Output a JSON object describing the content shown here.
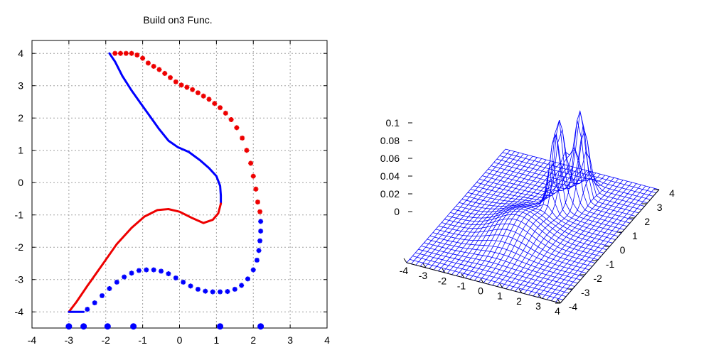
{
  "chart_data": [
    {
      "type": "line",
      "title": "Build on3 Func.",
      "xlabel": "",
      "ylabel": "",
      "xlim": [
        -4,
        4
      ],
      "ylim": [
        -4.5,
        4.4
      ],
      "x_ticks": [
        -4,
        -3,
        -2,
        -1,
        0,
        1,
        2,
        3,
        4
      ],
      "y_ticks": [
        -4,
        -3,
        -2,
        -1,
        0,
        1,
        2,
        3,
        4
      ],
      "grid": true,
      "legend": "none",
      "series": [
        {
          "color": "#0000ff",
          "style": "line",
          "points": [
            [
              -1.9,
              4.0
            ],
            [
              -1.75,
              3.75
            ],
            [
              -1.55,
              3.3
            ],
            [
              -1.3,
              2.85
            ],
            [
              -1.05,
              2.45
            ],
            [
              -0.8,
              2.05
            ],
            [
              -0.55,
              1.65
            ],
            [
              -0.3,
              1.3
            ],
            [
              -0.05,
              1.1
            ],
            [
              0.25,
              0.95
            ],
            [
              0.55,
              0.7
            ],
            [
              0.8,
              0.45
            ],
            [
              1.0,
              0.2
            ],
            [
              1.1,
              -0.1
            ],
            [
              1.12,
              -0.4
            ],
            [
              1.12,
              -0.65
            ]
          ]
        },
        {
          "color": "#ee0000",
          "style": "line",
          "points": [
            [
              1.12,
              -0.65
            ],
            [
              1.05,
              -0.95
            ],
            [
              0.9,
              -1.15
            ],
            [
              0.65,
              -1.25
            ],
            [
              0.35,
              -1.1
            ],
            [
              0.0,
              -0.9
            ],
            [
              -0.3,
              -0.82
            ],
            [
              -0.6,
              -0.85
            ],
            [
              -0.95,
              -1.05
            ],
            [
              -1.3,
              -1.4
            ],
            [
              -1.7,
              -1.9
            ],
            [
              -2.1,
              -2.55
            ],
            [
              -2.5,
              -3.2
            ],
            [
              -2.8,
              -3.7
            ],
            [
              -3.0,
              -4.0
            ]
          ]
        },
        {
          "color": "#0000ff",
          "style": "line",
          "points": [
            [
              -3.0,
              -4.0
            ],
            [
              -2.6,
              -4.0
            ]
          ]
        },
        {
          "color": "#ee0000",
          "style": "markers",
          "points": [
            [
              -1.75,
              4.0
            ],
            [
              -1.6,
              4.0
            ],
            [
              -1.45,
              4.0
            ],
            [
              -1.3,
              4.0
            ],
            [
              -1.15,
              3.95
            ],
            [
              -1.0,
              3.85
            ],
            [
              -0.85,
              3.7
            ],
            [
              -0.7,
              3.6
            ],
            [
              -0.55,
              3.5
            ],
            [
              -0.4,
              3.38
            ],
            [
              -0.25,
              3.25
            ],
            [
              -0.1,
              3.12
            ],
            [
              0.05,
              3.02
            ],
            [
              0.2,
              2.95
            ],
            [
              0.35,
              2.88
            ],
            [
              0.5,
              2.78
            ],
            [
              0.65,
              2.68
            ],
            [
              0.8,
              2.58
            ],
            [
              0.95,
              2.45
            ],
            [
              1.1,
              2.32
            ],
            [
              1.25,
              2.15
            ],
            [
              1.4,
              1.95
            ],
            [
              1.55,
              1.7
            ],
            [
              1.7,
              1.38
            ],
            [
              1.82,
              1.0
            ],
            [
              1.93,
              0.6
            ],
            [
              2.0,
              0.2
            ],
            [
              2.07,
              -0.2
            ],
            [
              2.12,
              -0.6
            ],
            [
              2.18,
              -0.9
            ]
          ]
        },
        {
          "color": "#0000ff",
          "style": "markers",
          "points": [
            [
              2.2,
              -1.2
            ],
            [
              2.2,
              -1.5
            ],
            [
              2.18,
              -1.8
            ],
            [
              2.15,
              -2.1
            ],
            [
              2.1,
              -2.4
            ],
            [
              2.0,
              -2.7
            ],
            [
              1.85,
              -2.98
            ],
            [
              1.68,
              -3.18
            ],
            [
              1.5,
              -3.3
            ],
            [
              1.3,
              -3.37
            ],
            [
              1.1,
              -3.38
            ],
            [
              0.9,
              -3.38
            ],
            [
              0.7,
              -3.36
            ],
            [
              0.5,
              -3.3
            ],
            [
              0.3,
              -3.2
            ],
            [
              0.1,
              -3.08
            ],
            [
              -0.1,
              -2.95
            ],
            [
              -0.3,
              -2.82
            ],
            [
              -0.5,
              -2.74
            ],
            [
              -0.7,
              -2.7
            ],
            [
              -0.9,
              -2.7
            ],
            [
              -1.1,
              -2.72
            ],
            [
              -1.3,
              -2.8
            ],
            [
              -1.5,
              -2.92
            ],
            [
              -1.7,
              -3.08
            ],
            [
              -1.9,
              -3.28
            ],
            [
              -2.1,
              -3.5
            ],
            [
              -2.3,
              -3.72
            ],
            [
              -2.5,
              -3.92
            ]
          ]
        },
        {
          "color": "#0000ff",
          "style": "dots",
          "points": [
            [
              -3.0,
              -4.45
            ],
            [
              -2.6,
              -4.45
            ],
            [
              -1.95,
              -4.45
            ],
            [
              -1.25,
              -4.45
            ],
            [
              1.1,
              -4.45
            ],
            [
              2.2,
              -4.45
            ]
          ]
        }
      ]
    },
    {
      "type": "surface",
      "title": "",
      "z_ticks": [
        "0.1",
        "0.08",
        "0.06",
        "0.04",
        "0.02",
        "0"
      ],
      "x_ticks": [
        "-4",
        "-3",
        "-2",
        "-1",
        "0",
        "1",
        "2",
        "3",
        "4"
      ],
      "y_ticks": [
        "-4",
        "-3",
        "-2",
        "-1",
        "0",
        "1",
        "2",
        "3",
        "4"
      ],
      "xlim": [
        -4,
        4
      ],
      "ylim": [
        -4,
        4
      ],
      "zlim": [
        0,
        0.1
      ],
      "mesh_color": "#0000ff",
      "peaks": [
        {
          "x": 0.4,
          "y": 1.4,
          "z": 0.1
        },
        {
          "x": 1.0,
          "y": 2.3,
          "z": 0.1
        }
      ]
    }
  ]
}
